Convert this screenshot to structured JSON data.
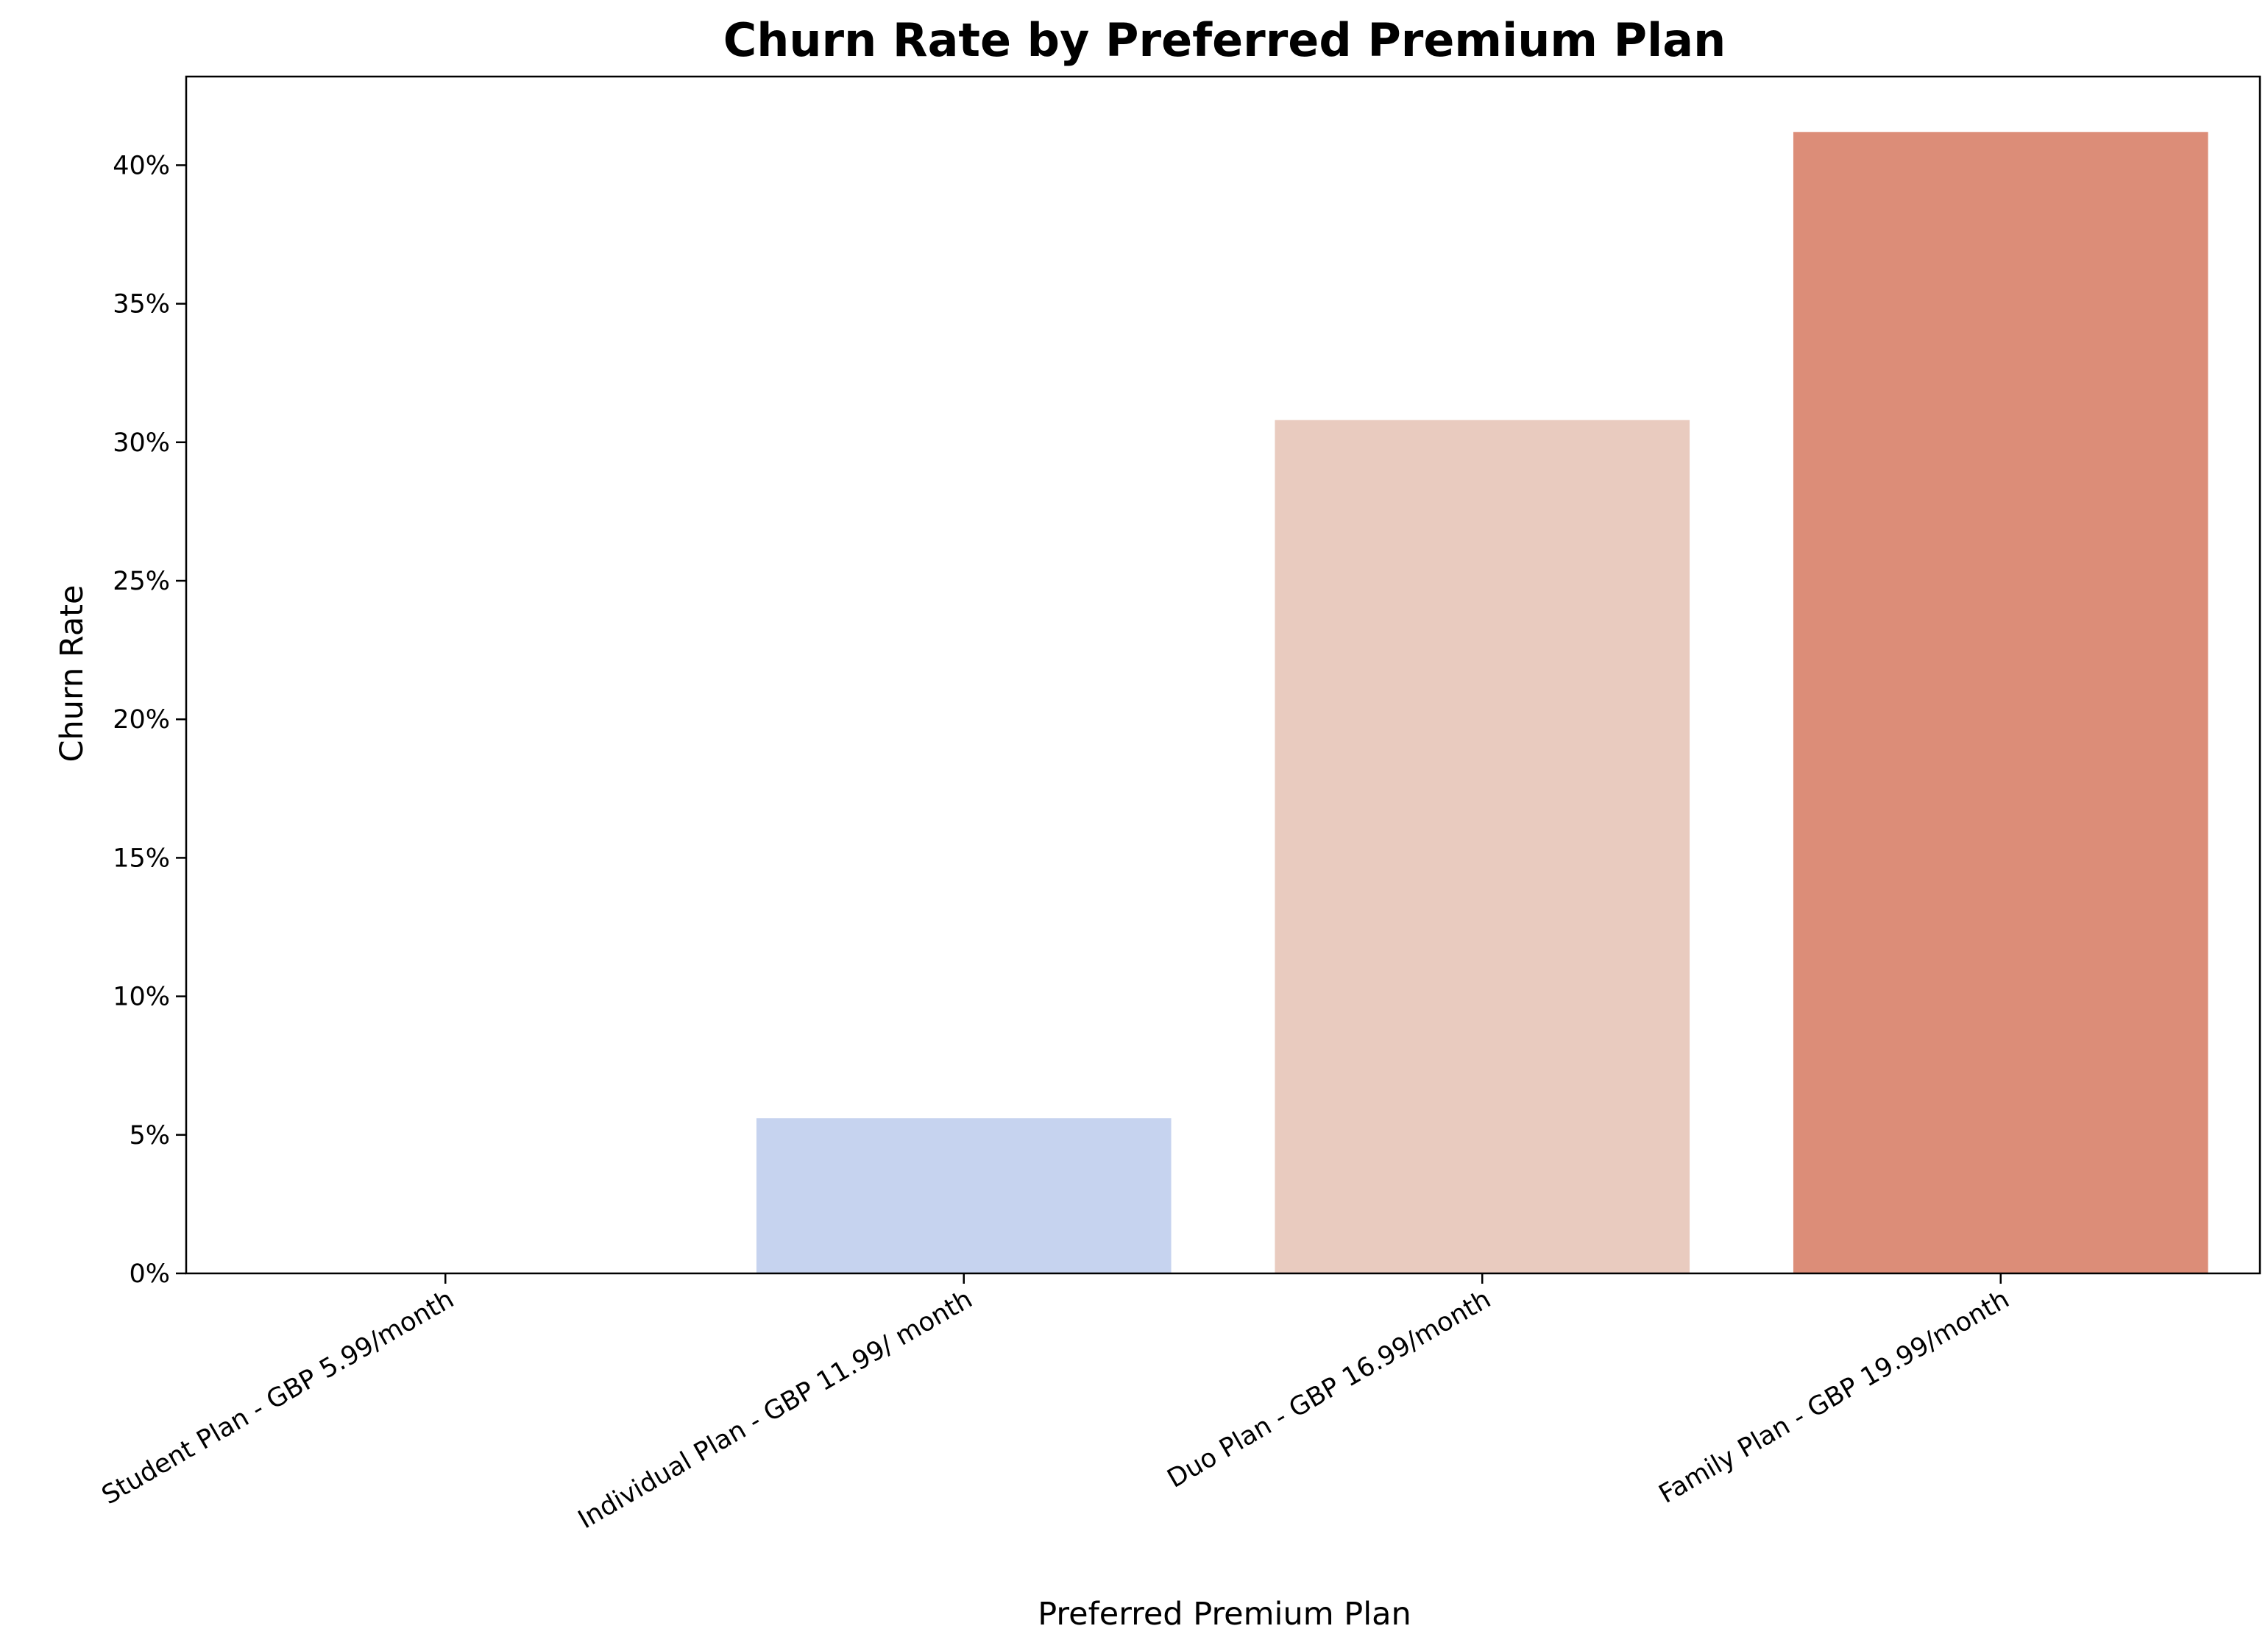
{
  "chart_data": {
    "type": "bar",
    "title": "Churn Rate by Preferred Premium Plan",
    "xlabel": "Preferred Premium Plan",
    "ylabel": "Churn Rate",
    "categories": [
      "Student Plan - GBP 5.99/month",
      "Individual Plan - GBP 11.99/ month",
      "Duo Plan - GBP 16.99/month",
      "Family Plan - GBP 19.99/month"
    ],
    "values": [
      0.0,
      5.6,
      30.8,
      41.2
    ],
    "value_unit": "%",
    "ylim": [
      0,
      43.2
    ],
    "yticks": [
      0,
      5,
      10,
      15,
      20,
      25,
      30,
      35,
      40
    ],
    "ytick_labels": [
      "0%",
      "5%",
      "10%",
      "15%",
      "20%",
      "25%",
      "30%",
      "35%",
      "40%"
    ],
    "colors": [
      "#ffffff",
      "#c6d3ef",
      "#e9cbbf",
      "#dc8d78"
    ],
    "grid": false,
    "legend": "none"
  }
}
